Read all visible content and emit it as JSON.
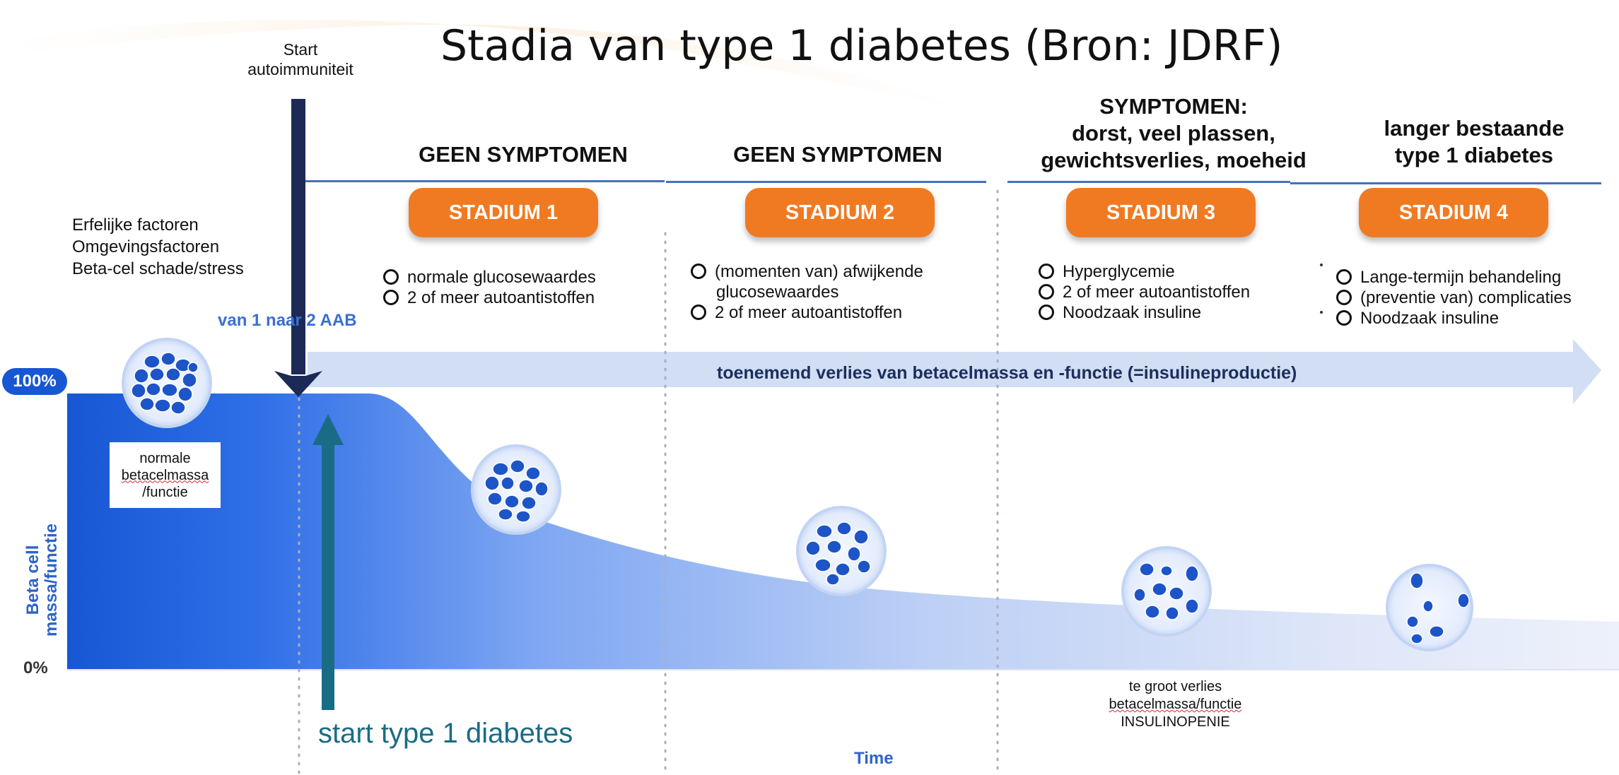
{
  "title": "Stadia van type 1 diabetes (Bron: JDRF)",
  "start_autoimmunity": [
    "Start",
    "autoimmuniteit"
  ],
  "factors": [
    "Erfelijke factoren",
    "Omgevingsfactoren",
    "Beta-cel schade/stress"
  ],
  "aab_label": "van 1 naar 2 AAB",
  "stages": [
    {
      "header": [
        "GEEN SYMPTOMEN"
      ],
      "label": "STADIUM 1",
      "bullets": [
        "normale glucosewaardes",
        "2 of meer autoantistoffen"
      ]
    },
    {
      "header": [
        "GEEN SYMPTOMEN"
      ],
      "label": "STADIUM 2",
      "bullets": [
        "(momenten van) afwijkende",
        "glucosewaardes",
        "2 of meer autoantistoffen"
      ]
    },
    {
      "header": [
        "SYMPTOMEN:",
        "dorst, veel plassen,",
        "gewichtsverlies, moeheid"
      ],
      "label": "STADIUM 3",
      "bullets": [
        "Hyperglycemie",
        "2 of meer autoantistoffen",
        "Noodzaak insuline"
      ]
    },
    {
      "header": [
        "langer bestaande",
        "type 1 diabetes"
      ],
      "label": "STADIUM 4",
      "bullets": [
        "Lange-termijn behandeling",
        "(preventie van) complicaties",
        "Noodzaak insuline"
      ]
    }
  ],
  "progress_arrow": "toenemend verlies  van betacelmassa en -functie (=insulineproductie)",
  "axis": {
    "y_top": "100%",
    "y_bottom": "0%",
    "y_label": [
      "Beta cell",
      "massa/functie"
    ],
    "x_label": "Time"
  },
  "normal_mass": [
    "normale",
    "betacelmassa",
    "/functie"
  ],
  "loss_note": [
    "te groot verlies",
    "betacelmassa/functie",
    "INSULINOPENIE"
  ],
  "start_t1d": "start  type 1 diabetes",
  "colors": {
    "stage_pill": "#f07a22",
    "curve_dark": "#1757d4",
    "curve_light": "#e6ecfa",
    "start_arrow": "#1c2a55",
    "t1d_arrow": "#1a6b86",
    "accent_blue": "#2d64c8"
  }
}
